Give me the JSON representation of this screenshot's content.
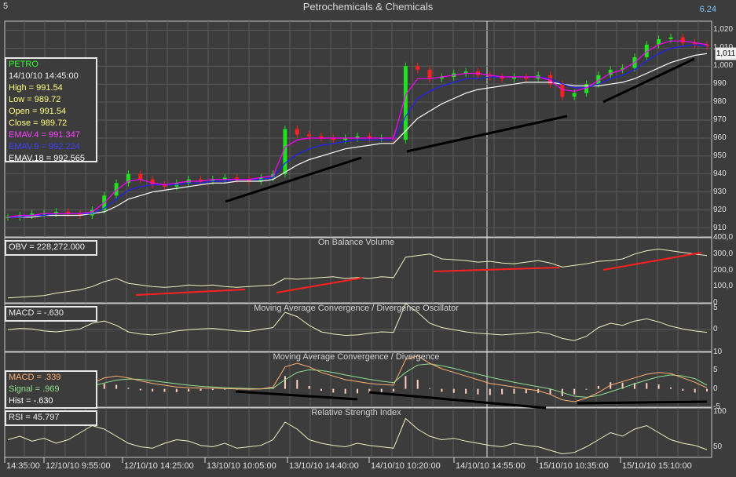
{
  "window": {
    "corner_left": "5",
    "title": "Petrochemicals & Chemicals",
    "corner_right": "6.24"
  },
  "colors": {
    "background": "#3c3c3c",
    "grid": "#5a5a5a",
    "price_line": "#ffffff",
    "ema4": "#ff00ff",
    "ema9": "#2020ff",
    "ema18": "#ffffff",
    "obv_line": "#f0f0c0",
    "macd_line": "#ffb070",
    "signal_line": "#90e090",
    "rsi_line": "#f0f0c0",
    "hist_bar": "#ffd0c0",
    "trend_black": "#000000",
    "trend_red": "#ff2020",
    "candle_up": "#20e020",
    "candle_down": "#ff2020"
  },
  "info": {
    "symbol": "PETRO",
    "datetime": "14/10/10 14:45:00",
    "high": "High  = 991.54",
    "low": "Low  = 989.72",
    "open": "Open = 991.54",
    "close": "Close = 989.72",
    "ema4": "EMAV.4 = 991.347",
    "ema9": "EMAV.9 = 992.224",
    "ema18": "EMAV.18 = 992.565"
  },
  "last_value": "1,011",
  "panels": {
    "obv": {
      "title": "On Balance Volume",
      "label": "OBV = 228,272.000"
    },
    "osc": {
      "title": "Moving Average Convergence / Divergence Oscillator",
      "label": "MACD = -.630"
    },
    "macd": {
      "title": "Moving Average Convergence / Divergence",
      "macd": "MACD = .339",
      "signal": "Signal = .969",
      "hist": "Hist = -.630"
    },
    "rsi": {
      "title": "Relative Strength Index",
      "label": "RSI = 45.797"
    }
  },
  "chart_data": [
    {
      "type": "candlestick",
      "title": "Petrochemicals & Chemicals",
      "ylim": [
        905,
        1025
      ],
      "yticks": [
        "1,020",
        "1,010",
        "1,000",
        "990",
        "980",
        "970",
        "960",
        "950",
        "940",
        "930",
        "920",
        "910"
      ],
      "xticks": [
        "14:35:00",
        "12/10/10 9:55:00",
        "12/10/10 14:25:00",
        "13/10/10 10:05:00",
        "13/10/10 14:40:00",
        "14/10/10 10:20:00",
        "14/10/10 14:55:00",
        "15/10/10 10:35:00",
        "15/10/10 15:10:00"
      ],
      "close_series": [
        916,
        917,
        918,
        918,
        919,
        918,
        917,
        920,
        928,
        935,
        940,
        937,
        934,
        933,
        935,
        937,
        936,
        937,
        938,
        937,
        936,
        938,
        940,
        965,
        962,
        961,
        960,
        959,
        960,
        961,
        960,
        960,
        959,
        1000,
        998,
        993,
        994,
        996,
        997,
        995,
        994,
        993,
        994,
        993,
        995,
        990,
        983,
        985,
        990,
        995,
        998,
        999,
        1005,
        1012,
        1015,
        1016,
        1013,
        1012,
        1011
      ],
      "series": [
        {
          "name": "EMAV.4",
          "values": [
            916,
            917,
            917,
            918,
            918,
            918,
            918,
            919,
            924,
            931,
            936,
            937,
            935,
            934,
            935,
            936,
            936,
            937,
            937,
            937,
            937,
            938,
            939,
            955,
            959,
            960,
            960,
            960,
            960,
            960,
            960,
            960,
            960,
            984,
            993,
            993,
            994,
            995,
            996,
            996,
            995,
            994,
            994,
            994,
            994,
            992,
            987,
            986,
            988,
            992,
            996,
            998,
            1002,
            1008,
            1012,
            1014,
            1014,
            1013,
            1012
          ]
        },
        {
          "name": "EMAV.9",
          "values": [
            916,
            916,
            917,
            917,
            918,
            918,
            918,
            918,
            921,
            926,
            931,
            933,
            934,
            934,
            934,
            935,
            935,
            936,
            936,
            937,
            937,
            937,
            938,
            946,
            951,
            954,
            956,
            957,
            958,
            959,
            959,
            959,
            959,
            972,
            982,
            986,
            989,
            991,
            993,
            993,
            994,
            994,
            994,
            994,
            994,
            993,
            990,
            988,
            988,
            990,
            993,
            995,
            998,
            1003,
            1007,
            1010,
            1011,
            1012,
            1011
          ]
        },
        {
          "name": "EMAV.18",
          "values": [
            916,
            916,
            916,
            917,
            917,
            917,
            917,
            918,
            919,
            922,
            926,
            928,
            930,
            931,
            932,
            933,
            934,
            935,
            935,
            936,
            936,
            936,
            937,
            941,
            945,
            948,
            950,
            952,
            954,
            955,
            956,
            957,
            957,
            964,
            971,
            975,
            979,
            982,
            985,
            987,
            988,
            989,
            990,
            991,
            991,
            991,
            990,
            989,
            989,
            989,
            990,
            991,
            993,
            996,
            999,
            1002,
            1004,
            1006,
            1007
          ]
        }
      ]
    },
    {
      "type": "line",
      "title": "On Balance Volume",
      "ylim": [
        0,
        400
      ],
      "yticks": [
        "400,0",
        "300,0",
        "200,0",
        "100,0",
        "0"
      ],
      "series": [
        {
          "name": "OBV",
          "values": [
            30,
            35,
            40,
            45,
            60,
            70,
            80,
            100,
            130,
            150,
            120,
            110,
            100,
            95,
            100,
            110,
            105,
            110,
            100,
            95,
            100,
            105,
            110,
            150,
            145,
            150,
            155,
            160,
            150,
            155,
            150,
            160,
            155,
            280,
            290,
            300,
            270,
            265,
            260,
            250,
            255,
            245,
            240,
            250,
            260,
            245,
            220,
            230,
            240,
            255,
            260,
            270,
            300,
            320,
            330,
            320,
            310,
            300,
            290
          ]
        }
      ]
    },
    {
      "type": "line",
      "title": "Moving Average Convergence / Divergence Oscillator",
      "ylim": [
        -5,
        6
      ],
      "yticks": [
        "5",
        "0"
      ],
      "series": [
        {
          "name": "MACD",
          "values": [
            0,
            0.3,
            0.2,
            -0.3,
            -0.5,
            -0.2,
            0.2,
            1.5,
            2,
            1,
            -0.5,
            -1,
            -1.2,
            -0.8,
            -0.3,
            0,
            0.2,
            0.3,
            0,
            -0.3,
            -0.4,
            0.1,
            0.5,
            4,
            3,
            1,
            -0.5,
            -1,
            -1.3,
            -1.2,
            -0.8,
            -0.5,
            -0.6,
            6,
            4,
            1.5,
            0.5,
            0,
            -0.5,
            -0.8,
            -1,
            -1.2,
            -1,
            -0.8,
            -0.5,
            -1,
            -2,
            -2.5,
            -1.5,
            0.5,
            1.5,
            1,
            2,
            2.5,
            1.8,
            0.8,
            0.2,
            -0.3,
            -0.6
          ]
        }
      ]
    },
    {
      "type": "line",
      "title": "Moving Average Convergence / Divergence",
      "ylim": [
        -5,
        10
      ],
      "yticks": [
        "10",
        "5",
        "0",
        "-5"
      ],
      "series": [
        {
          "name": "MACD",
          "values": [
            0,
            0,
            0.1,
            0.2,
            0.3,
            0.4,
            0.6,
            1.5,
            3,
            3.5,
            3,
            2.2,
            1.5,
            1,
            0.5,
            0.3,
            0.2,
            0.2,
            0.1,
            0,
            -0.1,
            0,
            0.5,
            6,
            7,
            6,
            4.5,
            3.5,
            2.5,
            2,
            1.5,
            1.2,
            1,
            8,
            9,
            7,
            5.5,
            4.5,
            3.5,
            2.5,
            1.5,
            1,
            0.5,
            0,
            -0.5,
            -1.5,
            -3,
            -3.5,
            -2.5,
            -1,
            1,
            2,
            3,
            4,
            4.5,
            4.2,
            3,
            1.8,
            0.3
          ]
        },
        {
          "name": "Signal",
          "values": [
            0,
            0,
            0,
            0.1,
            0.2,
            0.3,
            0.4,
            0.8,
            1.6,
            2.4,
            2.7,
            2.6,
            2.2,
            1.8,
            1.4,
            1,
            0.7,
            0.5,
            0.3,
            0.2,
            0.1,
            0,
            0.2,
            2.5,
            4.5,
            5.2,
            5,
            4.5,
            3.8,
            3.2,
            2.6,
            2.1,
            1.7,
            4.5,
            6.5,
            6.8,
            6.3,
            5.6,
            4.8,
            4,
            3.2,
            2.5,
            1.8,
            1.2,
            0.6,
            0,
            -1,
            -2,
            -2.3,
            -1.8,
            -0.8,
            0.3,
            1.4,
            2.4,
            3.3,
            3.8,
            3.5,
            2.8,
            1
          ]
        },
        {
          "name": "Hist",
          "values": [
            0,
            0,
            0.1,
            0.1,
            0.1,
            0.1,
            0.2,
            0.7,
            1.4,
            1.1,
            0.3,
            -0.4,
            -0.7,
            -0.8,
            -0.9,
            -0.7,
            -0.5,
            -0.3,
            -0.2,
            -0.2,
            -0.2,
            0,
            0.3,
            3.5,
            2.5,
            0.8,
            -0.5,
            -1,
            -1.3,
            -1.2,
            -1.1,
            -0.9,
            -0.7,
            3.5,
            2.5,
            0.2,
            -0.8,
            -1.1,
            -1.3,
            -1.5,
            -1.7,
            -1.5,
            -1.3,
            -1.2,
            -1.1,
            -1.5,
            -2,
            -1.5,
            -0.2,
            0.8,
            1.8,
            1.7,
            1.6,
            1.6,
            1.2,
            0.4,
            -0.5,
            -1,
            -0.7
          ]
        }
      ]
    },
    {
      "type": "line",
      "title": "Relative Strength Index",
      "ylim": [
        35,
        105
      ],
      "yticks": [
        "100",
        "50"
      ],
      "series": [
        {
          "name": "RSI",
          "values": [
            60,
            65,
            58,
            62,
            55,
            60,
            70,
            80,
            75,
            65,
            55,
            50,
            48,
            55,
            60,
            58,
            52,
            50,
            55,
            48,
            50,
            52,
            60,
            85,
            75,
            60,
            55,
            52,
            50,
            55,
            52,
            50,
            48,
            90,
            75,
            65,
            60,
            62,
            58,
            55,
            52,
            50,
            55,
            52,
            50,
            45,
            40,
            42,
            50,
            60,
            70,
            65,
            75,
            80,
            70,
            60,
            55,
            52,
            46
          ]
        }
      ]
    }
  ]
}
